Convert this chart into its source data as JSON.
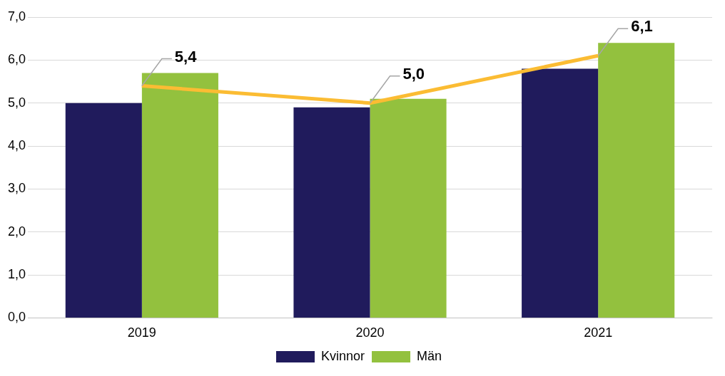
{
  "chart_data": {
    "type": "bar",
    "categories": [
      "2019",
      "2020",
      "2021"
    ],
    "series": [
      {
        "name": "Kvinnor",
        "color": "#201b5c",
        "values": [
          5.0,
          4.9,
          5.8
        ]
      },
      {
        "name": "Män",
        "color": "#93c13e",
        "values": [
          5.7,
          5.1,
          6.4
        ]
      },
      {
        "type": "line",
        "color": "#fbbc33",
        "values": [
          5.4,
          5.0,
          6.1
        ],
        "value_labels": [
          "5,4",
          "5,0",
          "6,1"
        ]
      }
    ],
    "ylim": [
      0,
      7
    ],
    "yticks": [
      {
        "value": 0,
        "label": "0,0"
      },
      {
        "value": 1,
        "label": "1,0"
      },
      {
        "value": 2,
        "label": "2,0"
      },
      {
        "value": 3,
        "label": "3,0"
      },
      {
        "value": 4,
        "label": "4,0"
      },
      {
        "value": 5,
        "label": "5,0"
      },
      {
        "value": 6,
        "label": "6,0"
      },
      {
        "value": 7,
        "label": "7,0"
      }
    ],
    "grid": "y",
    "legend": "bottom"
  }
}
